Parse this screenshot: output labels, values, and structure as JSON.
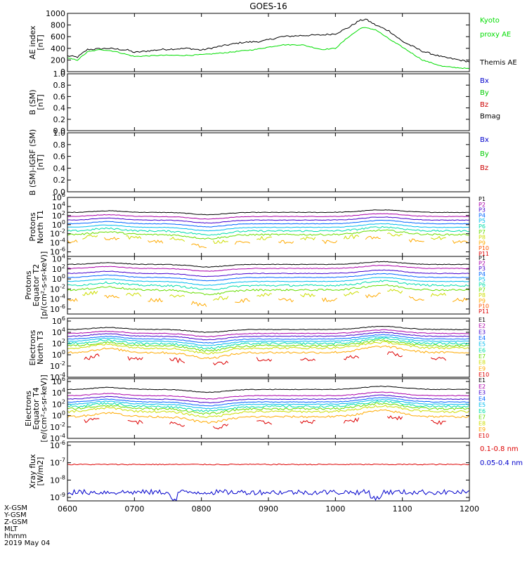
{
  "title": "GOES-16",
  "date_label": "2019 May 04",
  "footer_rows": [
    "X-GSM",
    "Y-GSM",
    "Z-GSM",
    "MLT",
    "hhmm"
  ],
  "x_axis": {
    "ticks": [
      {
        "value": 6,
        "label": "0600"
      },
      {
        "value": 7,
        "label": "0700"
      },
      {
        "value": 8,
        "label": "0800"
      },
      {
        "value": 9,
        "label": "0900"
      },
      {
        "value": 10,
        "label": "1000"
      },
      {
        "value": 11,
        "label": "1100"
      },
      {
        "value": 12,
        "label": "1200"
      }
    ],
    "range": [
      6,
      12
    ],
    "unit": "hours UT"
  },
  "chart_data": [
    {
      "type": "line",
      "panel": "ae",
      "ylabel": [
        "AE index",
        "[nT]"
      ],
      "ylim": [
        0,
        1000
      ],
      "log": false,
      "yticks": [
        0,
        200,
        400,
        600,
        800,
        1000
      ],
      "legend": [
        {
          "text": "Kyoto",
          "color": "#00dd00",
          "row": 0
        },
        {
          "text": "proxy AE",
          "color": "#00dd00",
          "row": 1
        },
        {
          "text": "Themis AE",
          "color": "#000000",
          "row": 3
        }
      ],
      "series": [
        {
          "name": "Themis AE",
          "color": "#000000",
          "noise": 14,
          "points": [
            [
              6.0,
              270
            ],
            [
              6.15,
              250
            ],
            [
              6.3,
              380
            ],
            [
              6.6,
              400
            ],
            [
              6.9,
              370
            ],
            [
              7.0,
              330
            ],
            [
              7.4,
              380
            ],
            [
              7.8,
              400
            ],
            [
              8.0,
              370
            ],
            [
              8.3,
              440
            ],
            [
              8.6,
              500
            ],
            [
              8.9,
              520
            ],
            [
              9.2,
              600
            ],
            [
              9.5,
              620
            ],
            [
              9.8,
              630
            ],
            [
              10.0,
              650
            ],
            [
              10.2,
              760
            ],
            [
              10.35,
              870
            ],
            [
              10.45,
              900
            ],
            [
              10.6,
              800
            ],
            [
              10.8,
              700
            ],
            [
              11.0,
              520
            ],
            [
              11.3,
              350
            ],
            [
              11.6,
              250
            ],
            [
              12.0,
              170
            ]
          ]
        },
        {
          "name": "Kyoto proxy AE",
          "color": "#00dd00",
          "noise": 8,
          "points": [
            [
              6.0,
              230
            ],
            [
              6.15,
              200
            ],
            [
              6.3,
              340
            ],
            [
              6.5,
              380
            ],
            [
              6.7,
              350
            ],
            [
              7.0,
              260
            ],
            [
              7.4,
              280
            ],
            [
              7.8,
              280
            ],
            [
              8.0,
              290
            ],
            [
              8.4,
              330
            ],
            [
              8.8,
              380
            ],
            [
              9.2,
              460
            ],
            [
              9.5,
              460
            ],
            [
              9.8,
              380
            ],
            [
              10.0,
              400
            ],
            [
              10.2,
              600
            ],
            [
              10.4,
              760
            ],
            [
              10.6,
              720
            ],
            [
              10.8,
              560
            ],
            [
              11.0,
              420
            ],
            [
              11.3,
              200
            ],
            [
              11.6,
              90
            ],
            [
              12.0,
              50
            ]
          ]
        }
      ]
    },
    {
      "type": "line",
      "panel": "b",
      "ylabel": [
        "B (SM)",
        "[nT]"
      ],
      "ylim": [
        0,
        1.0
      ],
      "log": false,
      "yticks": [
        0.0,
        0.2,
        0.4,
        0.6,
        0.8,
        1.0
      ],
      "legend": [
        {
          "text": "Bx",
          "color": "#0000cc",
          "row": 0
        },
        {
          "text": "By",
          "color": "#00cc00",
          "row": 1
        },
        {
          "text": "Bz",
          "color": "#cc0000",
          "row": 2
        },
        {
          "text": "Bmag",
          "color": "#000000",
          "row": 3
        }
      ],
      "series": []
    },
    {
      "type": "line",
      "panel": "db",
      "ylabel": [
        "B (SM)-IGRF (SM)",
        "[nT]"
      ],
      "ylim": [
        0,
        1.0
      ],
      "log": false,
      "yticks": [
        0.0,
        0.2,
        0.4,
        0.6,
        0.8,
        1.0
      ],
      "legend": [
        {
          "text": "Bx",
          "color": "#0000cc",
          "row": 0
        },
        {
          "text": "By",
          "color": "#00cc00",
          "row": 1
        },
        {
          "text": "Bz",
          "color": "#cc0000",
          "row": 2
        }
      ],
      "series": []
    },
    {
      "type": "line",
      "panel": "p1",
      "ylabel": [
        "Protons",
        "North T1"
      ],
      "ylim": [
        -7,
        6
      ],
      "log": true,
      "yticks": [
        -6,
        -4,
        -2,
        0,
        2,
        4,
        6
      ],
      "legend_labels": [
        "P1",
        "P2",
        "P3",
        "P4",
        "P5",
        "P6",
        "P7",
        "P8",
        "P9",
        "P10",
        "P11"
      ],
      "colors": [
        "#000000",
        "#aa00aa",
        "#4400cc",
        "#0066ff",
        "#00bbee",
        "#00ddaa",
        "#66dd00",
        "#ccdd00",
        "#ffaa00",
        "#ff5500",
        "#dd0000"
      ],
      "series_levels": [
        2.7,
        1.8,
        1.0,
        0.2,
        -0.6,
        -1.4,
        -2.2,
        -3.0,
        -3.8
      ],
      "gap_from": 7
    },
    {
      "type": "line",
      "panel": "p2",
      "ylabel": [
        "Protons",
        "Equator T2",
        "[p/(cm²-s-sr-keV)]"
      ],
      "ylim": [
        -7,
        4.5
      ],
      "log": true,
      "yticks": [
        -6,
        -4,
        -2,
        0,
        2,
        4
      ],
      "legend_labels": [
        "P1",
        "P2",
        "P3",
        "P4",
        "P5",
        "P6",
        "P7",
        "P8",
        "P9",
        "P10",
        "P11"
      ],
      "colors": [
        "#000000",
        "#aa00aa",
        "#4400cc",
        "#0066ff",
        "#00bbee",
        "#00ddaa",
        "#66dd00",
        "#ccdd00",
        "#ffaa00",
        "#ff5500",
        "#dd0000"
      ],
      "series_levels": [
        2.9,
        2.1,
        1.1,
        0.3,
        -0.5,
        -1.3,
        -2.2,
        -3.2,
        -4.2
      ],
      "gap_from": 7
    },
    {
      "type": "line",
      "panel": "e3",
      "ylabel": [
        "Electrons",
        "North T3"
      ],
      "ylim": [
        -4,
        6.5
      ],
      "log": true,
      "yticks": [
        -4,
        -2,
        0,
        2,
        4,
        6
      ],
      "legend_labels": [
        "E1",
        "E2",
        "E3",
        "E4",
        "E5",
        "E6",
        "E7",
        "E8",
        "E9",
        "E10"
      ],
      "colors": [
        "#000000",
        "#aa00aa",
        "#4400cc",
        "#0066ff",
        "#00bbee",
        "#00ddaa",
        "#66dd00",
        "#ccdd00",
        "#ffaa00",
        "#dd0000"
      ],
      "series_levels": [
        4.5,
        3.8,
        3.3,
        2.8,
        2.4,
        2.0,
        1.6,
        1.2,
        0.4,
        -0.8
      ],
      "gap_from": 9
    },
    {
      "type": "line",
      "panel": "e4",
      "ylabel": [
        "Electrons",
        "Equator T4",
        "[e/(cm²-s-sr-keV)]"
      ],
      "ylim": [
        -4,
        6.5
      ],
      "log": true,
      "yticks": [
        -4,
        -2,
        0,
        2,
        4,
        6
      ],
      "legend_labels": [
        "E1",
        "E2",
        "E3",
        "E4",
        "E5",
        "E6",
        "E7",
        "E8",
        "E9",
        "E10"
      ],
      "colors": [
        "#000000",
        "#aa00aa",
        "#4400cc",
        "#0066ff",
        "#00bbee",
        "#00ddaa",
        "#66dd00",
        "#ccdd00",
        "#ffaa00",
        "#dd0000"
      ],
      "series_levels": [
        4.6,
        3.5,
        2.9,
        2.4,
        2.0,
        1.6,
        1.2,
        0.7,
        -0.2,
        -1.2
      ],
      "gap_from": 9
    },
    {
      "type": "line",
      "panel": "xray",
      "ylabel": [
        "Xray flux",
        "[W/m2]"
      ],
      "ylim": [
        -9.2,
        -5.8
      ],
      "log": true,
      "yticks": [
        -9,
        -8,
        -7,
        -6
      ],
      "legend": [
        {
          "text": "0.1-0.8 nm",
          "color": "#dd0000",
          "row": 0
        },
        {
          "text": "0.05-0.4 nm",
          "color": "#0000cc",
          "row": 1
        }
      ],
      "series": [
        {
          "name": "0.1-0.8 nm",
          "color": "#dd0000",
          "level": -7.1,
          "noise": 0.03
        },
        {
          "name": "0.05-0.4 nm",
          "color": "#0000cc",
          "level": -8.7,
          "noise": 0.15
        }
      ]
    }
  ]
}
